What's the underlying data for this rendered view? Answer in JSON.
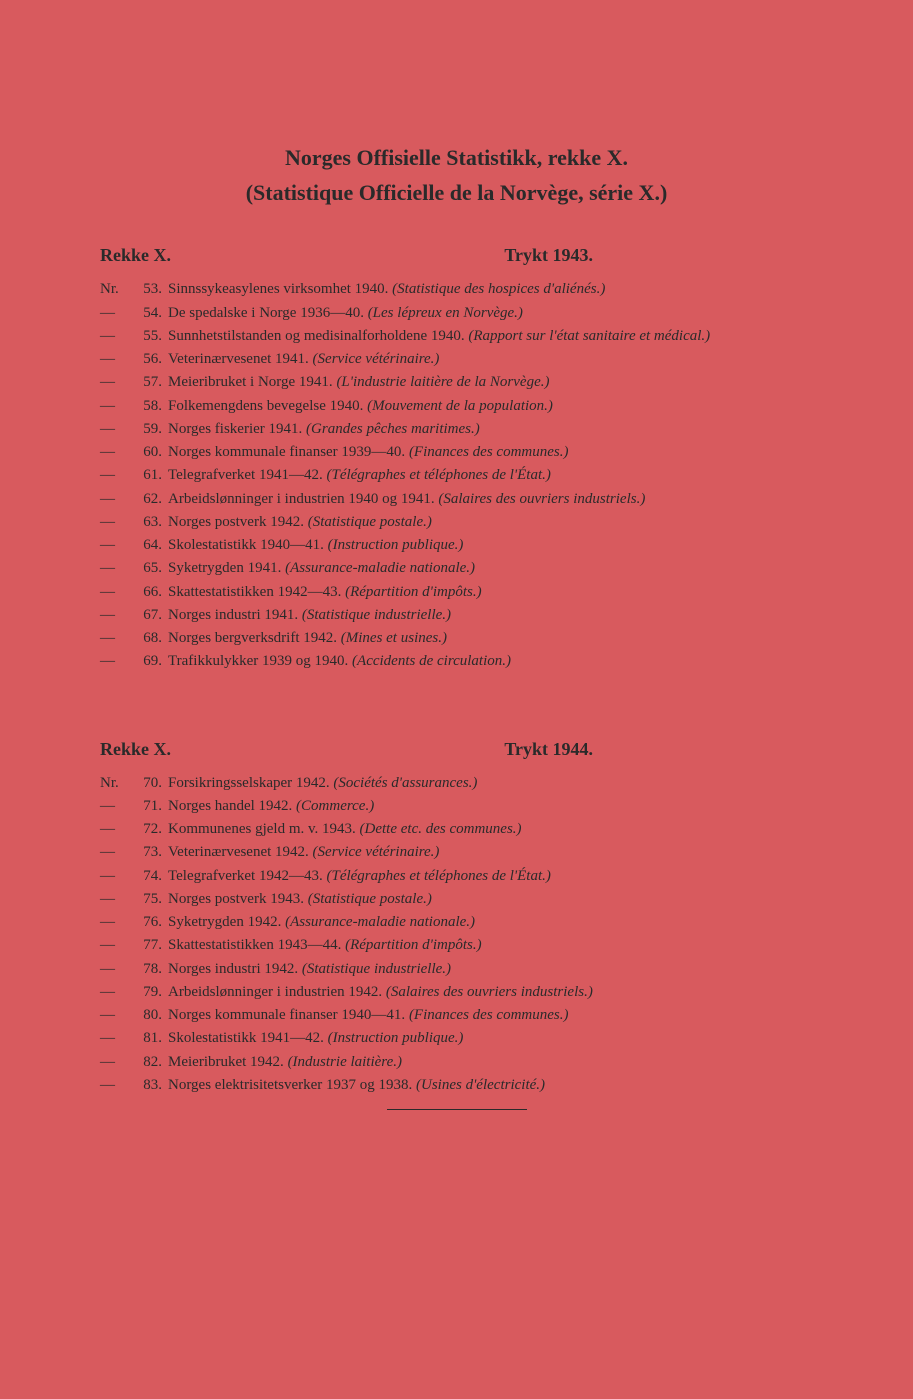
{
  "colors": {
    "background": "#d85a5e",
    "text": "#2a2a2a"
  },
  "typography": {
    "title_fontsize": 22,
    "header_fontsize": 18,
    "body_fontsize": 15,
    "font_family": "Georgia, serif"
  },
  "title": {
    "line1": "Norges Offisielle Statistikk, rekke X.",
    "line2": "(Statistique Officielle de la Norvège, série X.)"
  },
  "sections": [
    {
      "header_left": "Rekke X.",
      "header_right": "Trykt 1943.",
      "entries": [
        {
          "prefix": "Nr.",
          "num": "53.",
          "text": "Sinnssykeasylenes virksomhet 1940.",
          "italic": "(Statistique des hospices d'aliénés.)"
        },
        {
          "prefix": "—",
          "num": "54.",
          "text": "De spedalske i Norge 1936—40.",
          "italic": "(Les lépreux en Norvège.)"
        },
        {
          "prefix": "—",
          "num": "55.",
          "text": "Sunnhetstilstanden og medisinalforholdene 1940.",
          "italic": "(Rapport sur l'état sanitaire et médical.)"
        },
        {
          "prefix": "—",
          "num": "56.",
          "text": "Veterinærvesenet 1941.",
          "italic": "(Service vétérinaire.)"
        },
        {
          "prefix": "—",
          "num": "57.",
          "text": "Meieribruket i Norge 1941.",
          "italic": "(L'industrie laitière de la Norvège.)"
        },
        {
          "prefix": "—",
          "num": "58.",
          "text": "Folkemengdens bevegelse 1940.",
          "italic": "(Mouvement de la population.)"
        },
        {
          "prefix": "—",
          "num": "59.",
          "text": "Norges fiskerier 1941.",
          "italic": "(Grandes pêches maritimes.)"
        },
        {
          "prefix": "—",
          "num": "60.",
          "text": "Norges kommunale finanser 1939—40.",
          "italic": "(Finances des communes.)"
        },
        {
          "prefix": "—",
          "num": "61.",
          "text": "Telegrafverket 1941—42.",
          "italic": "(Télégraphes et téléphones de l'État.)"
        },
        {
          "prefix": "—",
          "num": "62.",
          "text": "Arbeidslønninger i industrien 1940 og 1941.",
          "italic": "(Salaires des ouvriers industriels.)"
        },
        {
          "prefix": "—",
          "num": "63.",
          "text": "Norges postverk 1942.",
          "italic": "(Statistique postale.)"
        },
        {
          "prefix": "—",
          "num": "64.",
          "text": "Skolestatistikk 1940—41.",
          "italic": "(Instruction publique.)"
        },
        {
          "prefix": "—",
          "num": "65.",
          "text": "Syketrygden 1941.",
          "italic": "(Assurance-maladie nationale.)"
        },
        {
          "prefix": "—",
          "num": "66.",
          "text": "Skattestatistikken 1942—43.",
          "italic": "(Répartition d'impôts.)"
        },
        {
          "prefix": "—",
          "num": "67.",
          "text": "Norges industri 1941.",
          "italic": "(Statistique industrielle.)"
        },
        {
          "prefix": "—",
          "num": "68.",
          "text": "Norges bergverksdrift 1942.",
          "italic": "(Mines et usines.)"
        },
        {
          "prefix": "—",
          "num": "69.",
          "text": "Trafikkulykker 1939 og 1940.",
          "italic": "(Accidents de circulation.)"
        }
      ]
    },
    {
      "header_left": "Rekke X.",
      "header_right": "Trykt 1944.",
      "entries": [
        {
          "prefix": "Nr.",
          "num": "70.",
          "text": "Forsikringsselskaper 1942.",
          "italic": "(Sociétés d'assurances.)"
        },
        {
          "prefix": "—",
          "num": "71.",
          "text": "Norges handel 1942.",
          "italic": "(Commerce.)"
        },
        {
          "prefix": "—",
          "num": "72.",
          "text": "Kommunenes gjeld m. v. 1943.",
          "italic": "(Dette etc. des communes.)"
        },
        {
          "prefix": "—",
          "num": "73.",
          "text": "Veterinærvesenet 1942.",
          "italic": "(Service vétérinaire.)"
        },
        {
          "prefix": "—",
          "num": "74.",
          "text": "Telegrafverket 1942—43.",
          "italic": "(Télégraphes et téléphones de l'État.)"
        },
        {
          "prefix": "—",
          "num": "75.",
          "text": "Norges postverk 1943.",
          "italic": "(Statistique postale.)"
        },
        {
          "prefix": "—",
          "num": "76.",
          "text": "Syketrygden 1942.",
          "italic": "(Assurance-maladie nationale.)"
        },
        {
          "prefix": "—",
          "num": "77.",
          "text": "Skattestatistikken 1943—44.",
          "italic": "(Répartition d'impôts.)"
        },
        {
          "prefix": "—",
          "num": "78.",
          "text": "Norges industri 1942.",
          "italic": "(Statistique industrielle.)"
        },
        {
          "prefix": "—",
          "num": "79.",
          "text": "Arbeidslønninger i industrien 1942.",
          "italic": "(Salaires des ouvriers industriels.)"
        },
        {
          "prefix": "—",
          "num": "80.",
          "text": "Norges kommunale finanser 1940—41.",
          "italic": "(Finances des communes.)"
        },
        {
          "prefix": "—",
          "num": "81.",
          "text": "Skolestatistikk 1941—42.",
          "italic": "(Instruction publique.)"
        },
        {
          "prefix": "—",
          "num": "82.",
          "text": "Meieribruket 1942.",
          "italic": "(Industrie laitière.)"
        },
        {
          "prefix": "—",
          "num": "83.",
          "text": "Norges elektrisitetsverker 1937 og 1938.",
          "italic": "(Usines d'électricité.)"
        }
      ]
    }
  ]
}
